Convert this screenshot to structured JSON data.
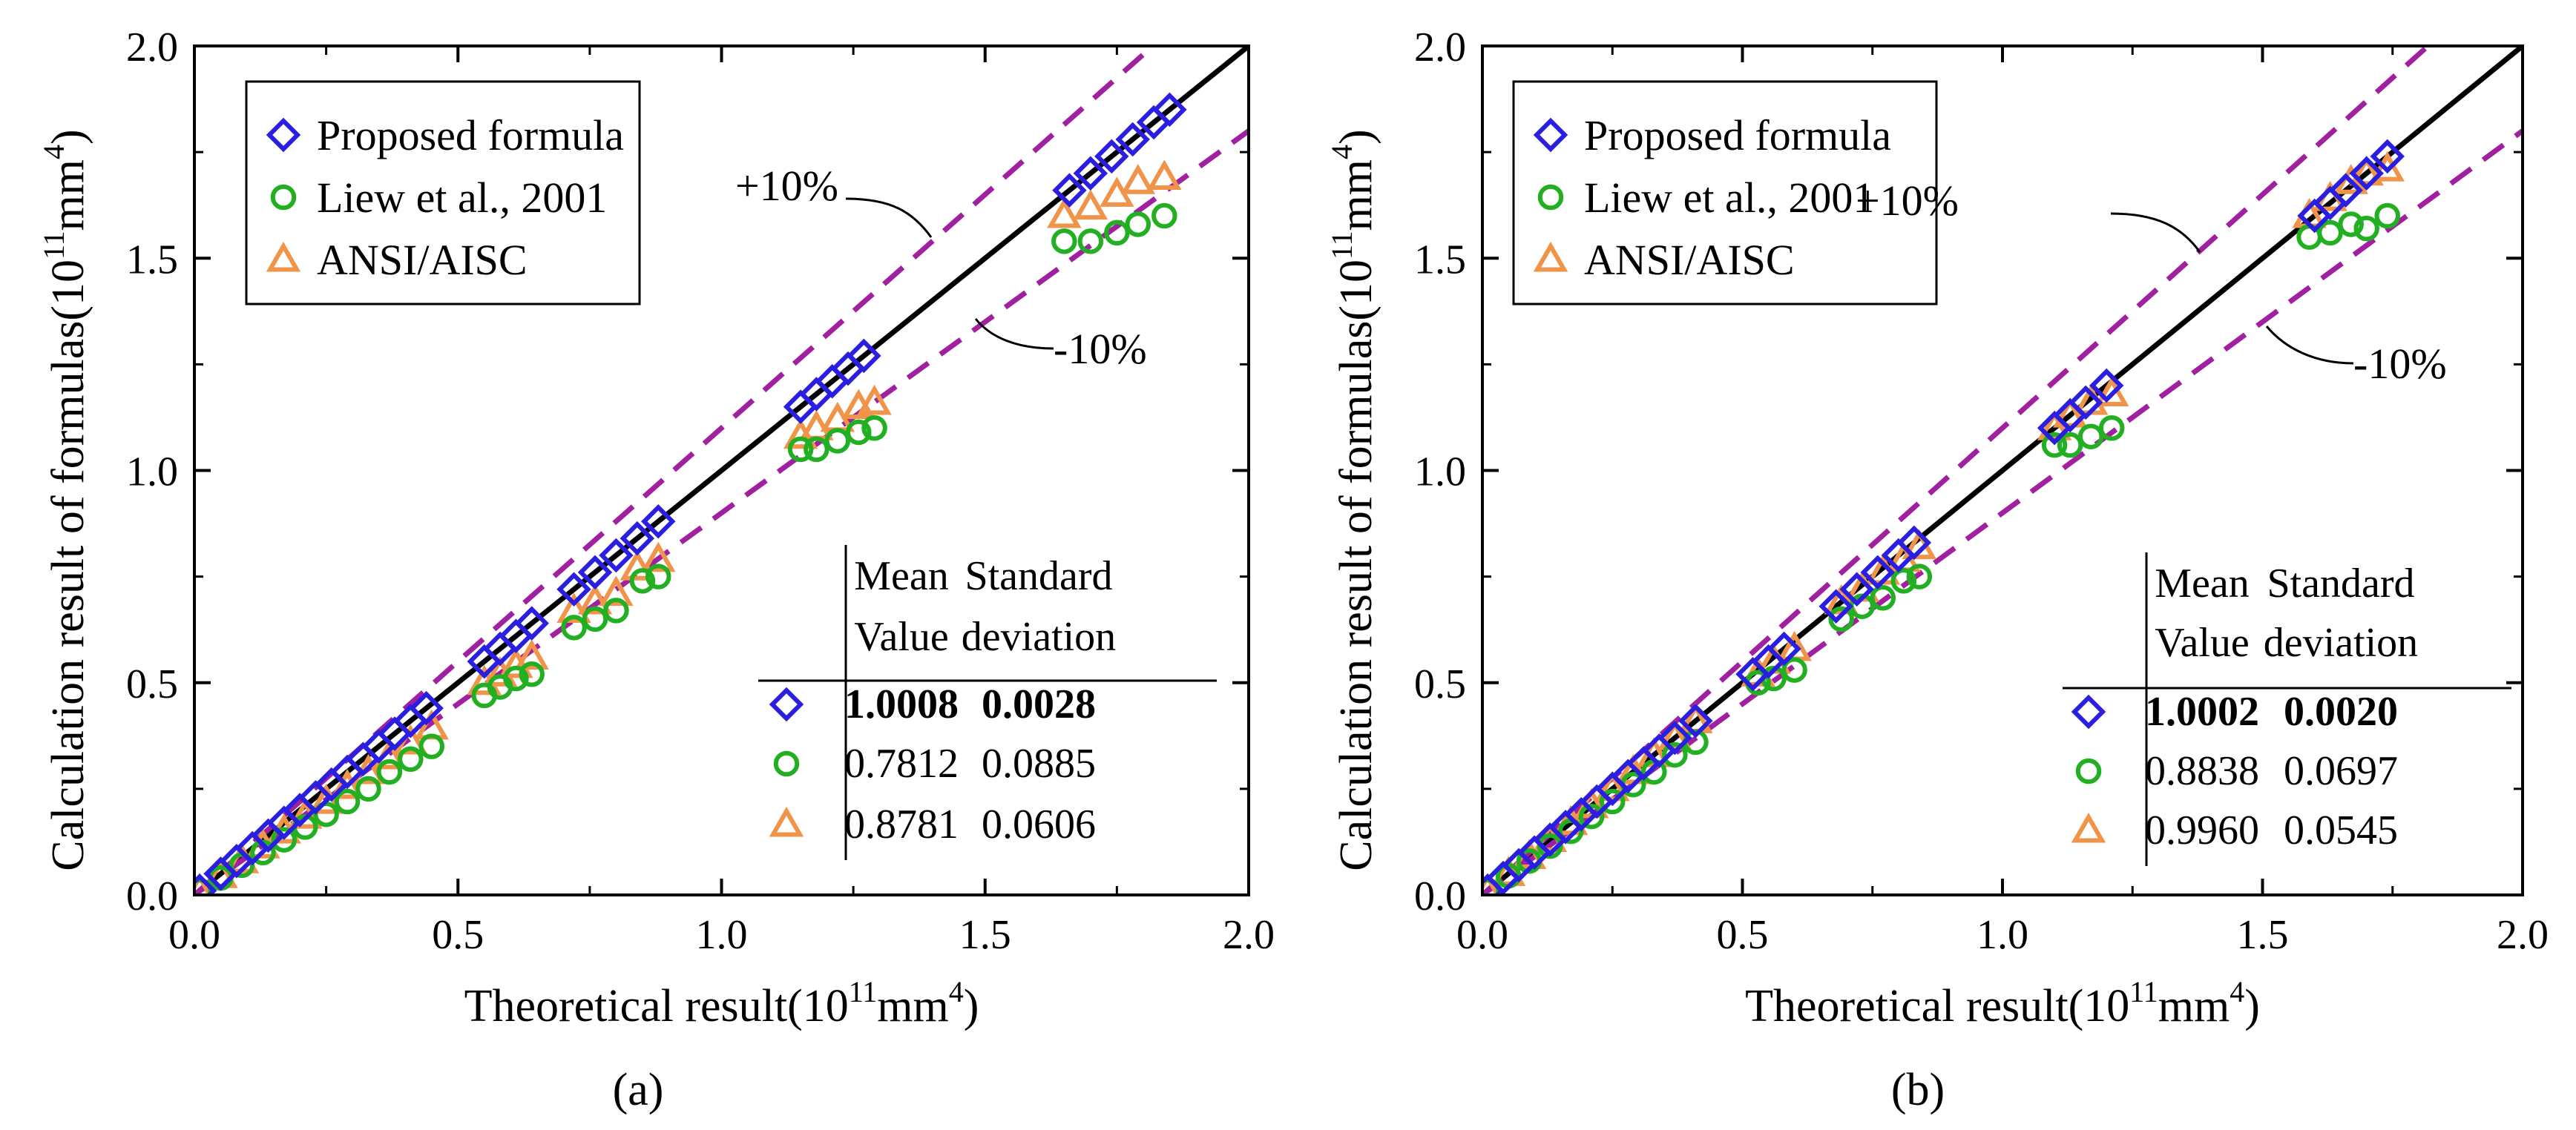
{
  "chart_data": [
    {
      "type": "scatter",
      "panel_label": "(a)",
      "xlabel_prefix": "Theoretical result(10",
      "xlabel_exp": "11",
      "xlabel_suffix": "mm",
      "xlabel_exp2": "4",
      "ylabel_prefix": "Calculation result of formulas(10",
      "ylabel_exp": "11",
      "ylabel_suffix": "mm",
      "ylabel_exp2": "4",
      "xlim": [
        0,
        2.0
      ],
      "ylim": [
        0,
        2.0
      ],
      "xticks": [
        "0.0",
        "0.5",
        "1.0",
        "1.5",
        "2.0"
      ],
      "yticks": [
        "0.0",
        "0.5",
        "1.0",
        "1.5",
        "2.0"
      ],
      "reference_lines": [
        {
          "name": "y=x",
          "slope": 1.0,
          "style": "solid",
          "color": "#000000"
        },
        {
          "name": "+10%",
          "slope": 1.1,
          "style": "dashed",
          "color": "#A020A0",
          "label": "+10%"
        },
        {
          "name": "-10%",
          "slope": 0.9,
          "style": "dashed",
          "color": "#A020A0",
          "label": "-10%"
        }
      ],
      "legend": [
        "Proposed formula",
        "Liew et al., 2001",
        "ANSI/AISC"
      ],
      "stats_table": {
        "headers": [
          [
            "Mean",
            "Value"
          ],
          [
            "Standard",
            "deviation"
          ]
        ],
        "rows": [
          {
            "series": "Proposed formula",
            "mean": "1.0008",
            "sd": "0.0028",
            "bold": true
          },
          {
            "series": "Liew et al., 2001",
            "mean": "0.7812",
            "sd": "0.0885",
            "bold": false
          },
          {
            "series": "ANSI/AISC",
            "mean": "0.8781",
            "sd": "0.0606",
            "bold": false
          }
        ]
      },
      "series": [
        {
          "name": "Proposed formula",
          "marker": "diamond",
          "color": "#2A1FE0",
          "points": [
            [
              0.01,
              0.01
            ],
            [
              0.05,
              0.05
            ],
            [
              0.08,
              0.08
            ],
            [
              0.11,
              0.11
            ],
            [
              0.14,
              0.14
            ],
            [
              0.17,
              0.17
            ],
            [
              0.2,
              0.2
            ],
            [
              0.23,
              0.23
            ],
            [
              0.26,
              0.26
            ],
            [
              0.29,
              0.29
            ],
            [
              0.32,
              0.32
            ],
            [
              0.35,
              0.35
            ],
            [
              0.38,
              0.38
            ],
            [
              0.41,
              0.41
            ],
            [
              0.44,
              0.44
            ],
            [
              0.55,
              0.55
            ],
            [
              0.58,
              0.58
            ],
            [
              0.61,
              0.61
            ],
            [
              0.64,
              0.64
            ],
            [
              0.72,
              0.72
            ],
            [
              0.76,
              0.76
            ],
            [
              0.8,
              0.8
            ],
            [
              0.84,
              0.84
            ],
            [
              0.88,
              0.88
            ],
            [
              1.15,
              1.15
            ],
            [
              1.18,
              1.18
            ],
            [
              1.21,
              1.21
            ],
            [
              1.24,
              1.24
            ],
            [
              1.27,
              1.27
            ],
            [
              1.66,
              1.66
            ],
            [
              1.7,
              1.7
            ],
            [
              1.74,
              1.74
            ],
            [
              1.78,
              1.78
            ],
            [
              1.82,
              1.82
            ],
            [
              1.85,
              1.85
            ]
          ]
        },
        {
          "name": "Liew et al., 2001",
          "marker": "circle",
          "color": "#22B022",
          "points": [
            [
              0.01,
              0.01
            ],
            [
              0.05,
              0.04
            ],
            [
              0.09,
              0.07
            ],
            [
              0.13,
              0.1
            ],
            [
              0.17,
              0.13
            ],
            [
              0.21,
              0.16
            ],
            [
              0.25,
              0.19
            ],
            [
              0.29,
              0.22
            ],
            [
              0.33,
              0.25
            ],
            [
              0.37,
              0.29
            ],
            [
              0.41,
              0.32
            ],
            [
              0.45,
              0.35
            ],
            [
              0.55,
              0.47
            ],
            [
              0.58,
              0.49
            ],
            [
              0.61,
              0.51
            ],
            [
              0.64,
              0.52
            ],
            [
              0.72,
              0.63
            ],
            [
              0.76,
              0.65
            ],
            [
              0.8,
              0.67
            ],
            [
              0.85,
              0.74
            ],
            [
              0.88,
              0.75
            ],
            [
              1.15,
              1.05
            ],
            [
              1.18,
              1.05
            ],
            [
              1.22,
              1.07
            ],
            [
              1.26,
              1.09
            ],
            [
              1.29,
              1.1
            ],
            [
              1.65,
              1.54
            ],
            [
              1.7,
              1.54
            ],
            [
              1.75,
              1.56
            ],
            [
              1.79,
              1.58
            ],
            [
              1.84,
              1.6
            ]
          ]
        },
        {
          "name": "ANSI/AISC",
          "marker": "triangle",
          "color": "#F0944A",
          "points": [
            [
              0.01,
              0.01
            ],
            [
              0.05,
              0.045
            ],
            [
              0.09,
              0.08
            ],
            [
              0.13,
              0.115
            ],
            [
              0.17,
              0.15
            ],
            [
              0.21,
              0.185
            ],
            [
              0.25,
              0.22
            ],
            [
              0.29,
              0.255
            ],
            [
              0.33,
              0.29
            ],
            [
              0.37,
              0.325
            ],
            [
              0.41,
              0.36
            ],
            [
              0.45,
              0.395
            ],
            [
              0.55,
              0.5
            ],
            [
              0.58,
              0.52
            ],
            [
              0.61,
              0.54
            ],
            [
              0.64,
              0.56
            ],
            [
              0.72,
              0.67
            ],
            [
              0.76,
              0.69
            ],
            [
              0.8,
              0.71
            ],
            [
              0.84,
              0.77
            ],
            [
              0.88,
              0.79
            ],
            [
              1.15,
              1.08
            ],
            [
              1.18,
              1.1
            ],
            [
              1.22,
              1.12
            ],
            [
              1.26,
              1.15
            ],
            [
              1.29,
              1.16
            ],
            [
              1.65,
              1.6
            ],
            [
              1.7,
              1.62
            ],
            [
              1.75,
              1.65
            ],
            [
              1.79,
              1.68
            ],
            [
              1.84,
              1.69
            ]
          ]
        }
      ]
    },
    {
      "type": "scatter",
      "panel_label": "(b)",
      "xlabel_prefix": "Theoretical result(10",
      "xlabel_exp": "11",
      "xlabel_suffix": "mm",
      "xlabel_exp2": "4",
      "ylabel_prefix": "Calculation result of formulas(10",
      "ylabel_exp": "11",
      "ylabel_suffix": "mm",
      "ylabel_exp2": "4",
      "xlim": [
        0,
        2.0
      ],
      "ylim": [
        0,
        2.0
      ],
      "xticks": [
        "0.0",
        "0.5",
        "1.0",
        "1.5",
        "2.0"
      ],
      "yticks": [
        "0.0",
        "0.5",
        "1.0",
        "1.5",
        "2.0"
      ],
      "reference_lines": [
        {
          "name": "y=x",
          "slope": 1.0,
          "style": "solid",
          "color": "#000000"
        },
        {
          "name": "+10%",
          "slope": 1.1,
          "style": "dashed",
          "color": "#A020A0",
          "label": "+10%"
        },
        {
          "name": "-10%",
          "slope": 0.9,
          "style": "dashed",
          "color": "#A020A0",
          "label": "-10%"
        }
      ],
      "legend": [
        "Proposed formula",
        "Liew et al., 2001",
        "ANSI/AISC"
      ],
      "stats_table": {
        "headers": [
          [
            "Mean",
            "Value"
          ],
          [
            "Standard",
            "deviation"
          ]
        ],
        "rows": [
          {
            "series": "Proposed formula",
            "mean": "1.0002",
            "sd": "0.0020",
            "bold": true
          },
          {
            "series": "Liew et al., 2001",
            "mean": "0.8838",
            "sd": "0.0697",
            "bold": false
          },
          {
            "series": "ANSI/AISC",
            "mean": "0.9960",
            "sd": "0.0545",
            "bold": false
          }
        ]
      },
      "series": [
        {
          "name": "Proposed formula",
          "marker": "diamond",
          "color": "#2A1FE0",
          "points": [
            [
              0.01,
              0.01
            ],
            [
              0.04,
              0.04
            ],
            [
              0.07,
              0.07
            ],
            [
              0.1,
              0.1
            ],
            [
              0.13,
              0.13
            ],
            [
              0.16,
              0.16
            ],
            [
              0.19,
              0.19
            ],
            [
              0.22,
              0.22
            ],
            [
              0.25,
              0.25
            ],
            [
              0.28,
              0.28
            ],
            [
              0.31,
              0.31
            ],
            [
              0.34,
              0.34
            ],
            [
              0.37,
              0.37
            ],
            [
              0.41,
              0.41
            ],
            [
              0.52,
              0.52
            ],
            [
              0.55,
              0.55
            ],
            [
              0.58,
              0.58
            ],
            [
              0.68,
              0.68
            ],
            [
              0.72,
              0.72
            ],
            [
              0.76,
              0.76
            ],
            [
              0.8,
              0.8
            ],
            [
              0.83,
              0.83
            ],
            [
              1.1,
              1.1
            ],
            [
              1.13,
              1.13
            ],
            [
              1.16,
              1.16
            ],
            [
              1.2,
              1.2
            ],
            [
              1.6,
              1.6
            ],
            [
              1.63,
              1.63
            ],
            [
              1.66,
              1.66
            ],
            [
              1.7,
              1.7
            ],
            [
              1.74,
              1.74
            ]
          ]
        },
        {
          "name": "Liew et al., 2001",
          "marker": "circle",
          "color": "#22B022",
          "points": [
            [
              0.01,
              0.01
            ],
            [
              0.05,
              0.045
            ],
            [
              0.09,
              0.08
            ],
            [
              0.13,
              0.115
            ],
            [
              0.17,
              0.15
            ],
            [
              0.21,
              0.185
            ],
            [
              0.25,
              0.22
            ],
            [
              0.29,
              0.26
            ],
            [
              0.33,
              0.29
            ],
            [
              0.37,
              0.33
            ],
            [
              0.41,
              0.36
            ],
            [
              0.53,
              0.5
            ],
            [
              0.56,
              0.51
            ],
            [
              0.6,
              0.53
            ],
            [
              0.69,
              0.65
            ],
            [
              0.73,
              0.68
            ],
            [
              0.77,
              0.7
            ],
            [
              0.81,
              0.74
            ],
            [
              0.84,
              0.75
            ],
            [
              1.1,
              1.06
            ],
            [
              1.13,
              1.06
            ],
            [
              1.17,
              1.08
            ],
            [
              1.21,
              1.1
            ],
            [
              1.59,
              1.55
            ],
            [
              1.63,
              1.56
            ],
            [
              1.67,
              1.58
            ],
            [
              1.7,
              1.57
            ],
            [
              1.74,
              1.6
            ]
          ]
        },
        {
          "name": "ANSI/AISC",
          "marker": "triangle",
          "color": "#F0944A",
          "points": [
            [
              0.01,
              0.01
            ],
            [
              0.05,
              0.05
            ],
            [
              0.09,
              0.09
            ],
            [
              0.13,
              0.13
            ],
            [
              0.17,
              0.17
            ],
            [
              0.21,
              0.21
            ],
            [
              0.25,
              0.25
            ],
            [
              0.29,
              0.29
            ],
            [
              0.33,
              0.33
            ],
            [
              0.37,
              0.37
            ],
            [
              0.41,
              0.41
            ],
            [
              0.53,
              0.52
            ],
            [
              0.56,
              0.55
            ],
            [
              0.6,
              0.58
            ],
            [
              0.69,
              0.69
            ],
            [
              0.73,
              0.72
            ],
            [
              0.77,
              0.76
            ],
            [
              0.81,
              0.79
            ],
            [
              0.84,
              0.82
            ],
            [
              1.1,
              1.1
            ],
            [
              1.13,
              1.13
            ],
            [
              1.17,
              1.16
            ],
            [
              1.21,
              1.18
            ],
            [
              1.59,
              1.6
            ],
            [
              1.63,
              1.64
            ],
            [
              1.67,
              1.68
            ],
            [
              1.7,
              1.7
            ],
            [
              1.74,
              1.71
            ]
          ]
        }
      ]
    }
  ]
}
